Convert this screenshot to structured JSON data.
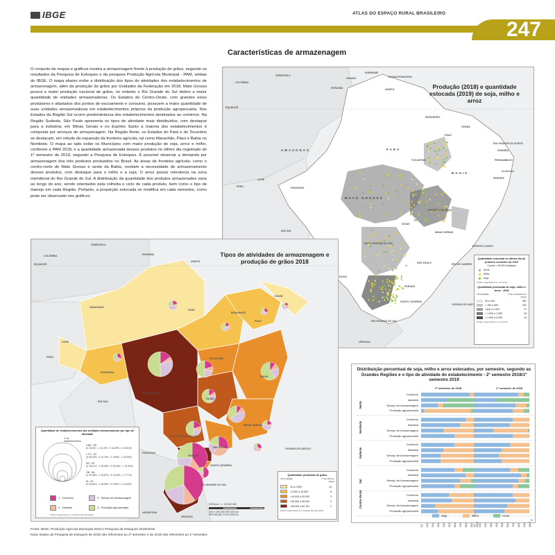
{
  "header": {
    "logo": "IBGE",
    "atlas_title": "ATLAS DO ESPAÇO RURAL BRASILEIRO",
    "page_number": "247"
  },
  "section_title": "Características de armazenagem",
  "intro": "O conjunto de mapas e gráficos mostra a armazenagem frente à produção de grãos, segundo os resultados da Pesquisa de Estoques e da pesquisa Produção Agrícola Municipal - PAM, ambas do IBGE. O mapa abaixo exibe a distribuição dos tipos de atividades dos estabelecimentos de armazenagem, além da produção de grãos por Unidades da Federação em 2018. Mato Grosso possui a maior produção nacional de grãos, no entanto o Rio Grande do Sul detém a maior quantidade de unidades armazenadoras. Os Estados do Centro-Oeste, com grandes eixos produtores e afastados dos pontos de escoamento e consumo, possuem a maior quantidade de suas unidades armazenadoras em estabelecimentos próprios da produção agropecuária. Nos Estados da Região Sul ocorre predominância dos estabelecimentos destinados ao comércio. Na Região Sudeste, São Paulo apresenta os tipos de atividade mais distribuídos, com destaque para a indústria; em Minas Gerais e no Espírito Santo a maioria dos estabelecimentos é composta por serviços de armazenagem. Na Região Norte, os Estados do Pará e do Tocantins se destacam, em virtude da expansão da fronteira agrícola, tal como Maranhão, Piauí e Bahia no Nordeste. O mapa ao lado exibe os Municípios com maior produção de soja, arroz e milho, conforme a PAM 2018, e a quantidade armazenada desses produtos no último dia registrado do 1º semestre de 2019, segundo a Pesquisa de Estoques. É possível observar a demanda por armazenagem dos três produtos produzidos no Brasil. As áreas de fronteira agrícola, como o centro-norte de Mato Grosso e oeste da Bahia, revelam a necessidade de armazenamento desses produtos, com destaque para o milho e a soja. O arroz possui relevância na zona meridional do Rio Grande do Sul. A distribuição da quantidade dos produtos armazenados varia ao longo do ano, sendo orientados pela colheita e ciclo de cada produto, bem como o tipo de manejo em cada Região. Portanto, a proporção estocada se modifica em cada semestre, como pode ser observado nos gráficos.",
  "map1": {
    "title": "Produção (2018) e quantidade estocada (2019) de soja, milho e arroz",
    "labels": {
      "venezuela": "VENEZUELA",
      "colombia": "COLÔMBIA",
      "guiana": "GUIANA",
      "suriname": "SURINAME",
      "guiana_fr": "GUIANA FRANCESA",
      "equador": "EQUADOR",
      "amazonas": "AMAZONAS",
      "para": "PARÁ",
      "peru": "PERU",
      "bolivia": "BOLÍVIA",
      "rondonia": "RONDÔNIA",
      "acre": "ACRE",
      "roraima": "RORAIMA",
      "amapa": "AMAPÁ",
      "maranhao": "MARANHÃO",
      "ceara": "CEARÁ",
      "piaui": "PIAUÍ",
      "rn": "RIO GRANDE DO NORTE",
      "paraiba": "PARAÍBA",
      "pernambuco": "PERNAMBUCO",
      "alagoas": "ALAGOAS",
      "sergipe": "SERGIPE",
      "bahia": "BAHIA",
      "tocantins": "TOCANTINS",
      "mt": "MATO GROSSO",
      "goias": "GOIÁS",
      "df": "DISTRITO FEDERAL",
      "mg": "MINAS GERAIS",
      "es": "ESPÍRITO SANTO",
      "ms": "MATO GROSSO DO SUL",
      "sp": "SÃO PAULO",
      "rj": "RIO DE JANEIRO",
      "parana": "PARANÁ",
      "sc": "SANTA CATARINA",
      "rs": "RIO GRANDE DO SUL",
      "paraguai": "PARAGUAI",
      "argentina": "ARGENTINA",
      "uruguai": "URUGUAI",
      "oceano": "OCEANO ATLÂNTICO"
    },
    "legend": {
      "title": "Quantidade estocada no último dia do primeiro semestre de 2019",
      "unit": "1 ponto = 50.000 toneladas",
      "items": [
        {
          "label": "Arroz",
          "color": "#e6e6a0"
        },
        {
          "label": "Milho",
          "color": "#e8d020"
        },
        {
          "label": "Soja",
          "color": "#7bbd4a"
        }
      ],
      "note": "Dados organizados por município",
      "prod_title": "Quantidade produzida de soja, milho e arroz - 2018",
      "prod_unit": "mil toneladas",
      "prod_col": "nº de municípios por classe",
      "classes": [
        {
          "label": "30 a 150",
          "n": "467",
          "color": "#e3e3e3"
        },
        {
          "label": "> 150 a 400",
          "n": "202",
          "color": "#c4c4c4"
        },
        {
          "label": ">400 a 1.000",
          "n": "72",
          "color": "#a0a0a0"
        },
        {
          "label": "> 1.000 a 1.500",
          "n": "16",
          "color": "#777"
        },
        {
          "label": "> 1.500 a 5.300",
          "n": "14",
          "color": "#4a4a4a"
        }
      ],
      "prod_note": "Dados organizados por município"
    }
  },
  "map2": {
    "title": "Tipos de atividades de armazenagem e produção de grãos 2018",
    "labels": {
      "venezuela": "VENEZUELA",
      "colombia": "COLÔMBIA",
      "equador": "EQUADOR",
      "peru": "PERU",
      "bolivia": "BOLÍVIA",
      "amazonas": "AMAZONAS",
      "para": "PARÁ",
      "mt": "MATO GROSSO",
      "bahia": "BAHIA",
      "goias": "GOIÁS",
      "mg": "MINAS GERAIS",
      "sp": "SÃO PAULO",
      "parana": "PARANÁ",
      "sc": "SANTA CATARINA",
      "rs": "RIO GRANDE DO SUL",
      "ms": "MATO GROSSO DO SUL",
      "rondonia": "RONDÔNIA",
      "acre": "ACRE",
      "tocantins": "TOCANTINS",
      "maranhao": "MARANHÃO",
      "piaui": "PIAUÍ",
      "ceara": "CEARÁ",
      "roraima": "RORAIMA",
      "amapa": "AMAPÁ",
      "paraguai": "PARAGUAI",
      "argentina": "ARGENTINA",
      "uruguai": "URUGUAI",
      "oceano": "OCEANO ATLÂNTICO"
    },
    "legend_types": {
      "title": "Quantidade de estabelecimentos das unidades armazenadoras por tipo de atividade",
      "circle_head": "nº de estabelecimentos",
      "entries": [
        {
          "t": "3 862 - RS",
          "d": "(4: 34,3% ; 1: 31,10% ; 3: 18,49% ; 4: 16,81%)"
        },
        {
          "t": "1 977 - MT",
          "d": "(4: 50,00% ; 3: 31,19% ; 2: 3,05% ; 1: 15,33%)"
        },
        {
          "t": "941 - SP",
          "d": "(4: 25,31% ; 2: 29,65% ; 3: 20,09% ; 1: 10,32%)"
        },
        {
          "t": "208 - BA",
          "d": "(4: 51,46% ; 2: 30,87% ; 3: 13,90% ; 1: 7,77%)"
        },
        {
          "t": "54 - PA",
          "d": "(4: 64,81% ; 1: 18,96% ; 3: 9,28% ; 3: 11,83%)"
        }
      ],
      "categories": [
        {
          "label": "1 - Comércio",
          "color": "#d63a8c"
        },
        {
          "label": "2 - Indústria",
          "color": "#f4b89c"
        },
        {
          "label": "3 - Serviço de Armazenagem",
          "color": "#d9c4e0"
        },
        {
          "label": "4 - Produção Agropecuária",
          "color": "#c8dc92"
        }
      ],
      "note": "Dados organizados por Unidade da Federação"
    },
    "legend_prod": {
      "title": "Quantidade produzida de grãos",
      "unit": "mil toneladas",
      "col": "nº de UFs por classe",
      "classes": [
        {
          "label": "10 a 2.500",
          "n": "14",
          "color": "#fbe6a0"
        },
        {
          "label": ">2.500 a 10.000",
          "n": "6",
          "color": "#f5c24e"
        },
        {
          "label": ">10.000 a 20.000",
          "n": "3",
          "color": "#e88e2a"
        },
        {
          "label": ">20.000 a 35.000",
          "n": "2",
          "color": "#bf5a1c"
        },
        {
          "label": ">35.000 a 60.101",
          "n": "2",
          "color": "#7a2416"
        }
      ],
      "note": "Dados organizados por Unidade da Federação"
    },
    "scale": {
      "label": "ESCALA : 1 : 25 000 000",
      "ticks": "100  0  100  200  300  400 km",
      "proj": "PROJEÇÃO POLICÔNICA"
    }
  },
  "chart_data": {
    "type": "bar",
    "title": "Distribuição percentual de soja, milho e arroz estocados, por semestre, segundo as Grandes Regiões e o tipo de atividade do estabelecimento - 2º semestre 2018/1º semestre 2019",
    "panels": [
      "2º semestre de 2018",
      "1º semestre de 2019"
    ],
    "regions": [
      "Norte",
      "Nordeste",
      "Sudeste",
      "Sul",
      "Centro-Oeste"
    ],
    "categories": [
      "Comércio",
      "Indústria",
      "Serviço de Armazenagem",
      "Produção agropecuária"
    ],
    "ticks": [
      "0,0",
      "10,0",
      "20,0",
      "30,0",
      "40,0",
      "50,0",
      "60,0",
      "70,0",
      "80,0",
      "90,0",
      "100,0"
    ],
    "percent_symbol": "%",
    "series_names": [
      "Soja",
      "Milho",
      "Arroz"
    ],
    "colors": [
      "#8fb8e0",
      "#f4c08e",
      "#8cc79b"
    ],
    "values_2018": [
      [
        [
          88,
          8,
          4
        ],
        [
          45,
          0,
          55
        ],
        [
          30,
          10,
          60
        ],
        [
          5,
          85,
          10
        ]
      ],
      [
        [
          80,
          20,
          0
        ],
        [
          70,
          25,
          5
        ],
        [
          40,
          55,
          5
        ],
        [
          60,
          40,
          0
        ]
      ],
      [
        [
          60,
          40,
          0
        ],
        [
          40,
          55,
          5
        ],
        [
          35,
          60,
          5
        ],
        [
          35,
          65,
          0
        ]
      ],
      [
        [
          60,
          15,
          25
        ],
        [
          80,
          15,
          5
        ],
        [
          70,
          20,
          10
        ],
        [
          60,
          10,
          30
        ]
      ],
      [
        [
          50,
          50,
          0
        ],
        [
          55,
          45,
          0
        ],
        [
          25,
          75,
          0
        ],
        [
          30,
          70,
          0
        ]
      ]
    ],
    "values_2019": [
      [
        [
          80,
          10,
          10
        ],
        [
          40,
          0,
          60
        ],
        [
          75,
          20,
          5
        ],
        [
          70,
          20,
          10
        ]
      ],
      [
        [
          70,
          30,
          0
        ],
        [
          65,
          35,
          0
        ],
        [
          35,
          62,
          3
        ],
        [
          70,
          30,
          0
        ]
      ],
      [
        [
          65,
          35,
          0
        ],
        [
          50,
          50,
          0
        ],
        [
          45,
          55,
          0
        ],
        [
          50,
          50,
          0
        ]
      ],
      [
        [
          65,
          15,
          20
        ],
        [
          85,
          10,
          5
        ],
        [
          80,
          12,
          8
        ],
        [
          70,
          10,
          20
        ]
      ],
      [
        [
          70,
          30,
          0
        ],
        [
          75,
          25,
          0
        ],
        [
          60,
          40,
          0
        ],
        [
          55,
          45,
          0
        ]
      ]
    ]
  },
  "footer": {
    "source": "Fonte: IBGE, Produção Agrícola Municipal 2018 e Pesquisa de Estoques 2018/2019.",
    "note": "Nota: Dados da Pesquisa de Estoques de 2018 são referentes ao 2º semestre e de 2019 são referentes ao 1º semestre."
  }
}
